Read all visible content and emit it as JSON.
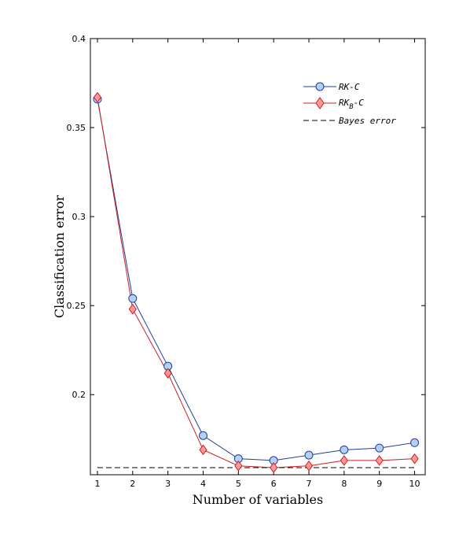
{
  "chart_data": {
    "type": "line",
    "xlabel": "Number of variables",
    "ylabel": "Classification error",
    "x": [
      1,
      2,
      3,
      4,
      5,
      6,
      7,
      8,
      9,
      10
    ],
    "xlim": [
      0.8,
      10.3
    ],
    "ylim": [
      0.155,
      0.4
    ],
    "x_ticks": [
      "1",
      "2",
      "3",
      "4",
      "5",
      "6",
      "7",
      "8",
      "9",
      "10"
    ],
    "y_ticks": [
      "0.2",
      "0.25",
      "0.3",
      "0.35",
      "0.4"
    ],
    "y_tick_values": [
      0.2,
      0.25,
      0.3,
      0.35,
      0.4
    ],
    "grid": false,
    "legend_position": "top-right",
    "series": [
      {
        "name": "RK-C",
        "name_main": "RK",
        "name_sub": "",
        "name_tail": "-C",
        "marker": "circle",
        "line_color": "#1f3d99",
        "marker_fill": "#b3d1f2",
        "values": [
          0.366,
          0.254,
          0.216,
          0.177,
          0.164,
          0.163,
          0.166,
          0.169,
          0.17,
          0.173
        ]
      },
      {
        "name": "RKB-C",
        "name_main": "RK",
        "name_sub": "B",
        "name_tail": "-C",
        "marker": "diamond",
        "line_color": "#cc1f1f",
        "marker_fill": "#ff9999",
        "values": [
          0.367,
          0.248,
          0.212,
          0.169,
          0.16,
          0.159,
          0.16,
          0.163,
          0.163,
          0.164
        ]
      }
    ],
    "reference_line": {
      "name": "Bayes error",
      "style": "dashed",
      "color": "#000000",
      "value": 0.159
    }
  }
}
